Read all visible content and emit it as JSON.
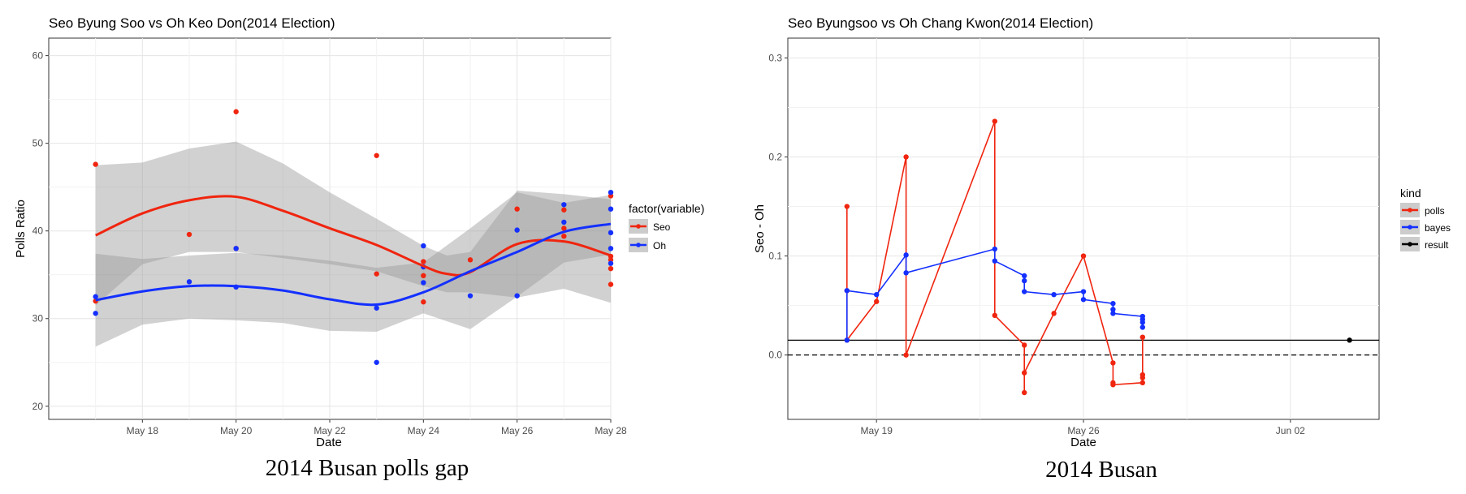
{
  "chart_data": [
    {
      "type": "scatter",
      "title": "Seo Byung Soo vs Oh Keo Don(2014 Election)",
      "xlabel": "Date",
      "ylabel": "Polls Ratio",
      "ylim": [
        18.5,
        62
      ],
      "xlim": [
        "2014-05-16",
        "2014-05-28"
      ],
      "x_ticks": [
        {
          "date": "2014-05-18",
          "label": "May 18"
        },
        {
          "date": "2014-05-20",
          "label": "May 20"
        },
        {
          "date": "2014-05-22",
          "label": "May 22"
        },
        {
          "date": "2014-05-24",
          "label": "May 24"
        },
        {
          "date": "2014-05-26",
          "label": "May 26"
        },
        {
          "date": "2014-05-28",
          "label": "May 28"
        }
      ],
      "y_ticks": [
        20,
        30,
        40,
        50,
        60
      ],
      "grid": true,
      "legend": {
        "title": "factor(variable)",
        "position": "right"
      },
      "series": [
        {
          "name": "Seo",
          "color": "#f0250f",
          "points": [
            [
              "2014-05-17",
              47.6
            ],
            [
              "2014-05-17",
              32.0
            ],
            [
              "2014-05-19",
              39.6
            ],
            [
              "2014-05-20",
              53.6
            ],
            [
              "2014-05-20",
              38.0
            ],
            [
              "2014-05-23",
              48.6
            ],
            [
              "2014-05-23",
              35.1
            ],
            [
              "2014-05-24",
              36.5
            ],
            [
              "2014-05-24",
              34.9
            ],
            [
              "2014-05-24",
              31.9
            ],
            [
              "2014-05-25",
              36.7
            ],
            [
              "2014-05-26",
              42.5
            ],
            [
              "2014-05-27",
              42.4
            ],
            [
              "2014-05-27",
              40.3
            ],
            [
              "2014-05-27",
              39.4
            ],
            [
              "2014-05-28",
              44.0
            ],
            [
              "2014-05-28",
              37.1
            ],
            [
              "2014-05-28",
              36.7
            ],
            [
              "2014-05-28",
              35.7
            ],
            [
              "2014-05-28",
              33.9
            ]
          ],
          "smooth": [
            [
              "2014-05-17",
              39.5
            ],
            [
              "2014-05-18",
              42.0
            ],
            [
              "2014-05-19",
              43.5
            ],
            [
              "2014-05-20",
              43.9
            ],
            [
              "2014-05-21",
              42.3
            ],
            [
              "2014-05-22",
              40.3
            ],
            [
              "2014-05-23",
              38.4
            ],
            [
              "2014-05-24",
              36.0
            ],
            [
              "2014-05-24.5",
              35.1
            ],
            [
              "2014-05-25",
              35.3
            ],
            [
              "2014-05-26",
              38.5
            ],
            [
              "2014-05-27",
              38.8
            ],
            [
              "2014-05-28",
              37.2
            ]
          ],
          "band": [
            [
              "2014-05-17",
              47.5,
              31.5
            ],
            [
              "2014-05-18",
              47.8,
              36.2
            ],
            [
              "2014-05-19",
              49.4,
              37.6
            ],
            [
              "2014-05-20",
              50.2,
              37.6
            ],
            [
              "2014-05-21",
              47.7,
              36.9
            ],
            [
              "2014-05-22",
              44.4,
              36.2
            ],
            [
              "2014-05-23",
              41.4,
              35.4
            ],
            [
              "2014-05-24",
              38.3,
              33.7
            ],
            [
              "2014-05-24.5",
              37.2,
              33.0
            ],
            [
              "2014-05-25",
              37.6,
              33.0
            ],
            [
              "2014-05-26",
              44.6,
              32.4
            ],
            [
              "2014-05-27",
              44.2,
              33.4
            ],
            [
              "2014-05-28",
              43.6,
              31.8
            ]
          ]
        },
        {
          "name": "Oh",
          "color": "#1430ff",
          "points": [
            [
              "2014-05-17",
              32.5
            ],
            [
              "2014-05-17",
              30.6
            ],
            [
              "2014-05-19",
              34.2
            ],
            [
              "2014-05-20",
              38.0
            ],
            [
              "2014-05-20",
              33.6
            ],
            [
              "2014-05-23",
              31.2
            ],
            [
              "2014-05-23",
              25.0
            ],
            [
              "2014-05-24",
              38.3
            ],
            [
              "2014-05-24",
              35.9
            ],
            [
              "2014-05-24",
              34.1
            ],
            [
              "2014-05-25",
              32.6
            ],
            [
              "2014-05-26",
              40.1
            ],
            [
              "2014-05-26",
              32.6
            ],
            [
              "2014-05-27",
              43.0
            ],
            [
              "2014-05-27",
              41.0
            ],
            [
              "2014-05-28",
              44.4
            ],
            [
              "2014-05-28",
              42.5
            ],
            [
              "2014-05-28",
              39.8
            ],
            [
              "2014-05-28",
              38.0
            ],
            [
              "2014-05-28",
              36.3
            ]
          ],
          "smooth": [
            [
              "2014-05-17",
              32.1
            ],
            [
              "2014-05-18",
              33.1
            ],
            [
              "2014-05-19",
              33.7
            ],
            [
              "2014-05-20",
              33.7
            ],
            [
              "2014-05-21",
              33.2
            ],
            [
              "2014-05-22",
              32.2
            ],
            [
              "2014-05-23",
              31.6
            ],
            [
              "2014-05-24",
              33.0
            ],
            [
              "2014-05-25",
              35.4
            ],
            [
              "2014-05-26",
              37.6
            ],
            [
              "2014-05-27",
              39.9
            ],
            [
              "2014-05-28",
              40.8
            ]
          ],
          "band": [
            [
              "2014-05-17",
              37.4,
              26.8
            ],
            [
              "2014-05-18",
              36.8,
              29.3
            ],
            [
              "2014-05-19",
              37.2,
              30.0
            ],
            [
              "2014-05-20",
              37.5,
              29.8
            ],
            [
              "2014-05-21",
              37.2,
              29.5
            ],
            [
              "2014-05-22",
              36.6,
              28.6
            ],
            [
              "2014-05-23",
              35.8,
              28.5
            ],
            [
              "2014-05-24",
              36.4,
              30.6
            ],
            [
              "2014-05-25",
              40.3,
              28.8
            ],
            [
              "2014-05-26",
              44.4,
              32.5
            ],
            [
              "2014-05-27",
              43.2,
              36.4
            ],
            [
              "2014-05-28",
              44.1,
              37.3
            ]
          ]
        }
      ]
    },
    {
      "type": "line",
      "title": "Seo Byungsoo vs Oh Chang Kwon(2014 Election)",
      "xlabel": "Date",
      "ylabel": "Seo - Oh",
      "ylim": [
        -0.065,
        0.32
      ],
      "xlim": [
        "2014-05-16",
        "2014-06-05"
      ],
      "x_ticks": [
        {
          "date": "2014-05-19",
          "label": "May 19"
        },
        {
          "date": "2014-05-26",
          "label": "May 26"
        },
        {
          "date": "2014-06-02",
          "label": "Jun 02"
        }
      ],
      "y_ticks": [
        0.0,
        0.1,
        0.2,
        0.3
      ],
      "y_tick_labels": [
        "0.0",
        "0.1",
        "0.2",
        "0.3"
      ],
      "grid": true,
      "reference_lines": [
        {
          "y": 0.0,
          "style": "dashed"
        },
        {
          "y": 0.015,
          "style": "solid"
        }
      ],
      "legend": {
        "title": "kind",
        "position": "right"
      },
      "series": [
        {
          "name": "polls",
          "color": "#f0250f",
          "points": [
            [
              "2014-05-18",
              0.065
            ],
            [
              "2014-05-18",
              0.15
            ],
            [
              "2014-05-18",
              0.015
            ],
            [
              "2014-05-19",
              0.054
            ],
            [
              "2014-05-20",
              0.2
            ],
            [
              "2014-05-20",
              0.0
            ],
            [
              "2014-05-23",
              0.236
            ],
            [
              "2014-05-23",
              0.04
            ],
            [
              "2014-05-24",
              0.01
            ],
            [
              "2014-05-24",
              -0.038
            ],
            [
              "2014-05-24",
              -0.018
            ],
            [
              "2014-05-25",
              0.042
            ],
            [
              "2014-05-26",
              0.1
            ],
            [
              "2014-05-27",
              -0.008
            ],
            [
              "2014-05-27",
              -0.028
            ],
            [
              "2014-05-27",
              -0.03
            ],
            [
              "2014-05-28",
              -0.028
            ],
            [
              "2014-05-28",
              -0.023
            ],
            [
              "2014-05-28",
              -0.02
            ],
            [
              "2014-05-28",
              0.018
            ]
          ]
        },
        {
          "name": "bayes",
          "color": "#1430ff",
          "points": [
            [
              "2014-05-18",
              0.015
            ],
            [
              "2014-05-18",
              0.065
            ],
            [
              "2014-05-19",
              0.061
            ],
            [
              "2014-05-20",
              0.101
            ],
            [
              "2014-05-20",
              0.083
            ],
            [
              "2014-05-23",
              0.107
            ],
            [
              "2014-05-23",
              0.095
            ],
            [
              "2014-05-24",
              0.08
            ],
            [
              "2014-05-24",
              0.075
            ],
            [
              "2014-05-24",
              0.064
            ],
            [
              "2014-05-25",
              0.061
            ],
            [
              "2014-05-26",
              0.064
            ],
            [
              "2014-05-26",
              0.056
            ],
            [
              "2014-05-27",
              0.052
            ],
            [
              "2014-05-27",
              0.046
            ],
            [
              "2014-05-27",
              0.042
            ],
            [
              "2014-05-28",
              0.039
            ],
            [
              "2014-05-28",
              0.036
            ],
            [
              "2014-05-28",
              0.033
            ],
            [
              "2014-05-28",
              0.028
            ]
          ]
        },
        {
          "name": "result",
          "color": "#000000",
          "points": [
            [
              "2014-06-04",
              0.015
            ]
          ]
        }
      ]
    }
  ],
  "captions": [
    "2014 Busan polls gap",
    "2014 Busan"
  ]
}
